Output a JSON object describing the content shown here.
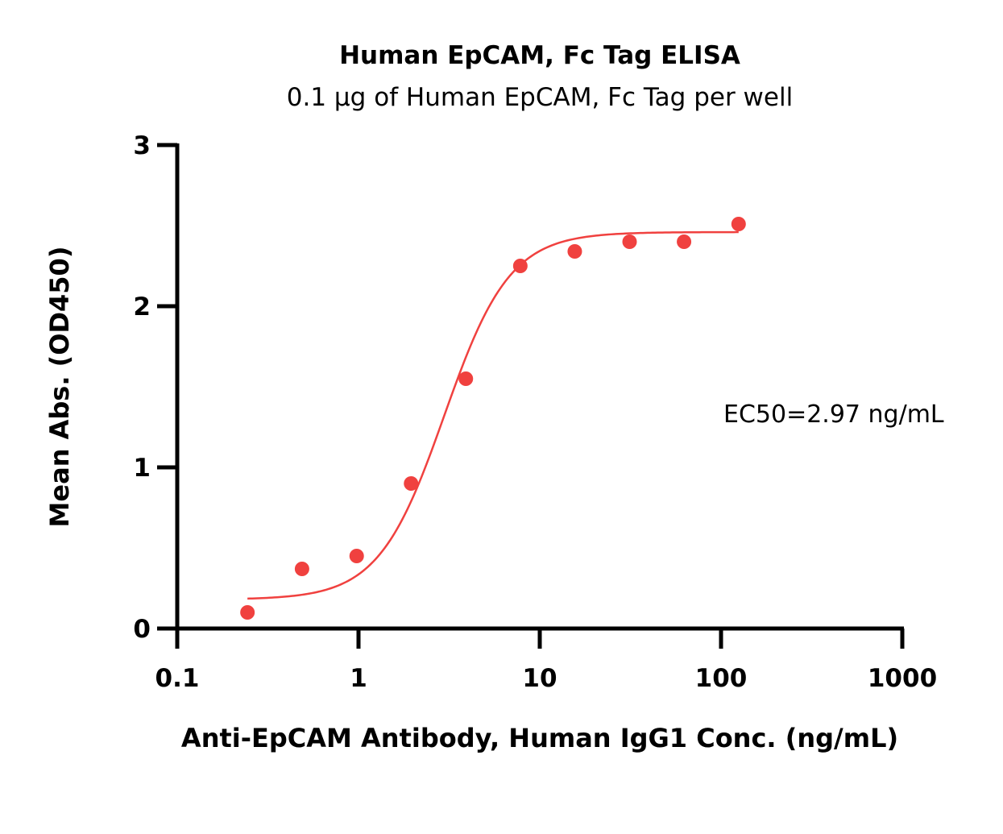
{
  "chart_data": {
    "type": "scatter",
    "title": "Human EpCAM, Fc Tag ELISA",
    "subtitle": "0.1 μg of Human EpCAM, Fc Tag per well",
    "xlabel": "Anti-EpCAM Antibody, Human IgG1 Conc. (ng/mL)",
    "ylabel": "Mean Abs. (OD450)",
    "x_scale": "log",
    "xlim": [
      0.1,
      1000
    ],
    "ylim": [
      0,
      3
    ],
    "x_ticks": [
      "0.1",
      "1",
      "10",
      "100",
      "1000"
    ],
    "y_ticks": [
      "0",
      "1",
      "2",
      "3"
    ],
    "grid": false,
    "legend": "none",
    "annotation": "EC50=2.97 ng/mL",
    "color": "#f0413f",
    "series": [
      {
        "points": [
          {
            "x": 0.244,
            "y": 0.1
          },
          {
            "x": 0.488,
            "y": 0.37
          },
          {
            "x": 0.977,
            "y": 0.45
          },
          {
            "x": 1.95,
            "y": 0.9
          },
          {
            "x": 3.91,
            "y": 1.55
          },
          {
            "x": 7.81,
            "y": 2.25
          },
          {
            "x": 15.6,
            "y": 2.34
          },
          {
            "x": 31.3,
            "y": 2.4
          },
          {
            "x": 62.5,
            "y": 2.4
          },
          {
            "x": 125,
            "y": 2.51
          }
        ],
        "fit": {
          "model": "4PL",
          "bottom": 0.18,
          "top": 2.46,
          "ec50": 2.97,
          "hill": 2.4,
          "x_range": [
            0.244,
            125
          ]
        }
      }
    ]
  }
}
